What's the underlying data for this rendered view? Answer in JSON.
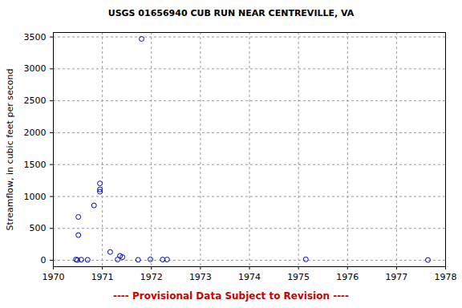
{
  "chart_data": {
    "type": "scatter",
    "title": "USGS 01656940 CUB RUN NEAR CENTREVILLE, VA",
    "caption": "---- Provisional Data Subject to Revision ----",
    "y_label": "Streamflow, in cubic feet per second",
    "x": [
      1970.46,
      1970.49,
      1970.51,
      1970.51,
      1970.57,
      1970.7,
      1970.83,
      1970.95,
      1970.95,
      1970.95,
      1971.16,
      1971.31,
      1971.36,
      1971.41,
      1971.73,
      1971.8,
      1971.98,
      1972.23,
      1972.32,
      1975.15,
      1977.64
    ],
    "values": [
      12,
      5,
      680,
      395,
      10,
      8,
      860,
      1205,
      1110,
      1075,
      130,
      12,
      70,
      50,
      8,
      3470,
      15,
      12,
      12,
      15,
      5
    ],
    "color": "#0000cc",
    "marker": "circle",
    "xlim": [
      1970,
      1978
    ],
    "xticks": [
      1970,
      1971,
      1972,
      1973,
      1974,
      1975,
      1976,
      1977,
      1978
    ],
    "ylim": [
      -100,
      3570
    ],
    "yticks": [
      0,
      500,
      1000,
      1500,
      2000,
      2500,
      3000,
      3500
    ],
    "grid": true
  }
}
